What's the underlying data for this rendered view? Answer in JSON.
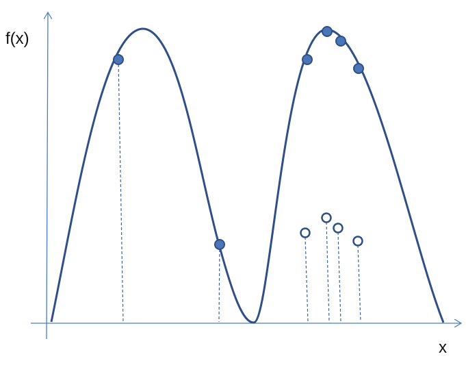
{
  "axes": {
    "y_label": "f(x)",
    "x_label": "x"
  }
}
